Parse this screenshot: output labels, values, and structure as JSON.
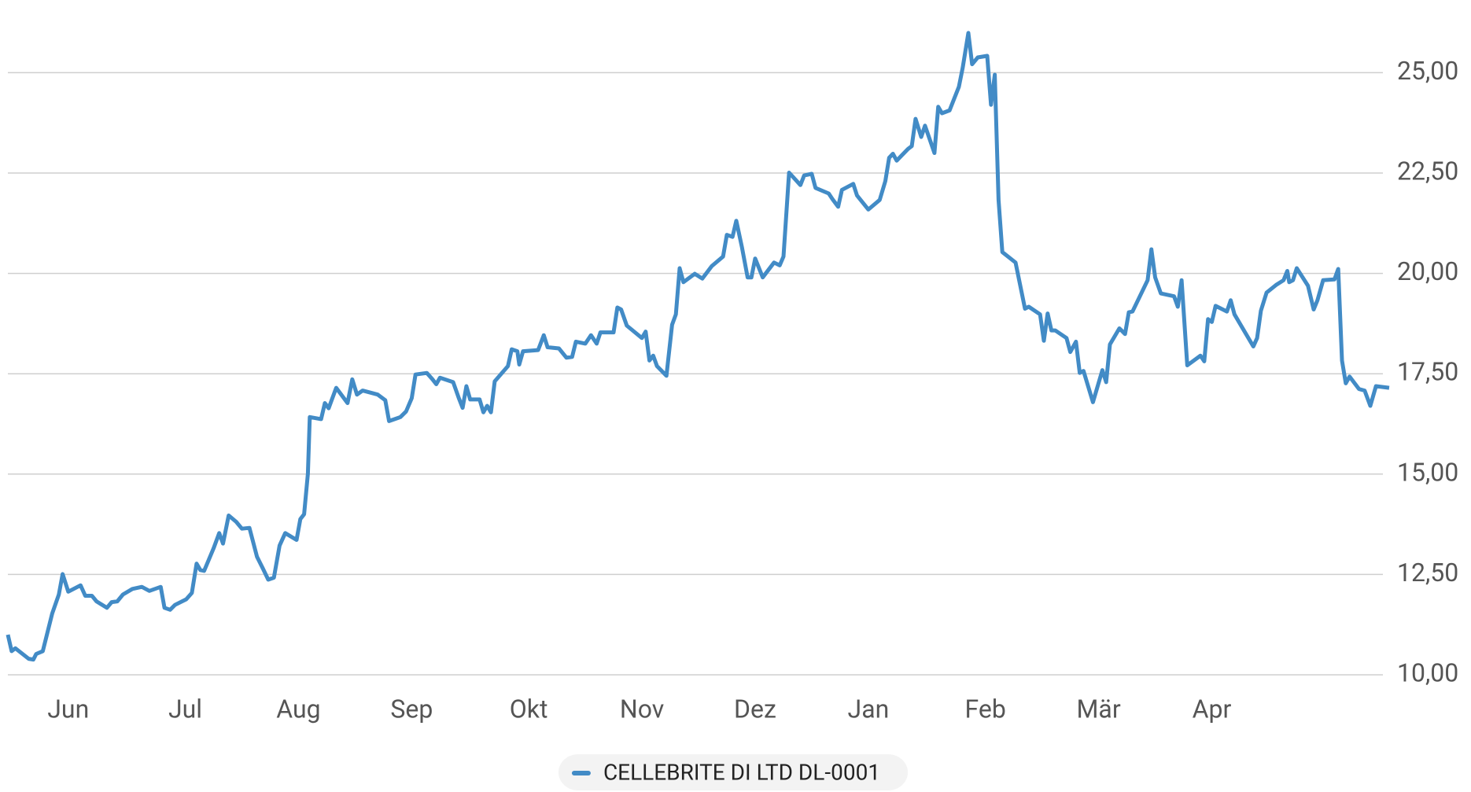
{
  "chart_data": {
    "type": "line",
    "x": [
      0,
      1,
      2,
      5.5,
      6.75,
      7.5,
      9.25,
      11.75,
      13.5,
      14.5,
      16,
      19.25,
      20.5,
      22.25,
      23.5,
      26.25,
      27.5,
      29,
      30.5,
      33,
      35.5,
      37.5,
      40.5,
      41.5,
      43,
      44.25,
      47.25,
      48.75,
      50,
      51,
      52,
      54.5,
      56,
      57,
      58.5,
      60.5,
      62,
      64,
      66,
      67.5,
      69,
      70.5,
      72,
      73.5,
      76.5,
      77.5,
      78.5,
      79.5,
      80,
      83,
      84,
      85,
      87,
      90,
      91.25,
      92.5,
      94,
      98,
      100,
      101,
      104,
      105.5,
      107,
      108,
      111,
      112.5,
      113.5,
      114.5,
      118,
      119.5,
      120.5,
      121.5,
      122.5,
      125,
      126,
      127,
      128,
      129,
      132.5,
      133.5,
      135,
      135.5,
      136.5,
      140.5,
      142,
      143,
      146,
      148,
      149.5,
      150.5,
      153,
      154.5,
      156,
      157,
      160.5,
      161.5,
      162.5,
      164,
      168,
      169,
      170,
      171,
      172,
      174.5,
      176,
      177,
      178,
      179,
      182,
      184,
      186.5,
      189.5,
      190.5,
      192,
      193,
      194.5,
      196,
      197,
      198,
      200,
      203,
      204.5,
      205.5,
      207,
      210,
      211,
      213,
      214,
      217.5,
      218.5,
      220,
      221,
      224,
      225,
      228,
      231,
      232.5,
      233.5,
      234.5,
      235.5,
      238.5,
      239.5,
      240.5,
      242,
      243,
      245.5,
      246.5,
      247.5,
      249.5,
      252,
      253,
      254.5,
      255.5,
      257,
      259.5,
      260.5,
      261.5,
      262.5,
      263.5,
      267,
      269.5,
      270.5,
      273.5,
      274.5,
      275.5,
      276.5,
      277.5,
      280.5,
      281.5,
      283,
      284,
      285,
      287.5,
      290,
      291,
      292,
      294.5,
      296,
      297,
      298,
      302,
      303,
      304,
      305.5,
      309,
      310,
      311,
      312.5,
      316,
      317,
      318,
      319,
      320,
      323,
      324,
      325,
      330,
      331,
      332,
      333.5,
      336,
      338,
      339,
      339.5,
      340.5,
      341.5,
      344.5,
      346,
      347,
      348.5,
      351.5,
      352.5,
      353.5,
      354.5,
      355.5,
      358,
      359.5,
      361,
      362.5,
      366
    ],
    "series": [
      {
        "name": "CELLEBRITE DI LTD DL-0001",
        "color": "#428bc6",
        "values": [
          11.0,
          10.59,
          10.66,
          10.4,
          10.38,
          10.52,
          10.59,
          11.53,
          12.0,
          12.51,
          12.07,
          12.23,
          11.97,
          11.97,
          11.83,
          11.67,
          11.81,
          11.83,
          12.0,
          12.14,
          12.19,
          12.09,
          12.19,
          11.67,
          11.62,
          11.74,
          11.88,
          12.04,
          12.77,
          12.61,
          12.59,
          13.15,
          13.53,
          13.27,
          13.97,
          13.81,
          13.64,
          13.66,
          12.94,
          12.66,
          12.37,
          12.42,
          13.22,
          13.53,
          13.36,
          13.88,
          14.0,
          15.01,
          16.42,
          16.37,
          16.77,
          16.64,
          17.15,
          16.77,
          17.36,
          16.98,
          17.08,
          16.98,
          16.84,
          16.32,
          16.42,
          16.56,
          16.89,
          17.48,
          17.52,
          17.36,
          17.24,
          17.4,
          17.29,
          16.89,
          16.65,
          17.19,
          16.86,
          16.86,
          16.54,
          16.7,
          16.54,
          17.31,
          17.69,
          18.11,
          18.06,
          17.73,
          18.06,
          18.09,
          18.46,
          18.16,
          18.13,
          17.9,
          17.92,
          18.3,
          18.25,
          18.46,
          18.25,
          18.53,
          18.53,
          19.15,
          19.1,
          18.7,
          18.39,
          18.55,
          17.83,
          17.95,
          17.69,
          17.45,
          18.72,
          18.98,
          20.13,
          19.78,
          19.99,
          19.87,
          20.18,
          20.42,
          20.96,
          20.91,
          21.31,
          20.65,
          19.9,
          19.9,
          20.37,
          19.9,
          20.27,
          20.2,
          20.42,
          22.51,
          22.2,
          22.44,
          22.48,
          22.13,
          21.99,
          21.85,
          21.66,
          22.08,
          22.23,
          21.94,
          21.59,
          21.83,
          22.3,
          22.88,
          22.98,
          22.81,
          23.1,
          23.17,
          23.85,
          23.4,
          23.68,
          23.0,
          24.15,
          23.99,
          24.06,
          24.65,
          25.12,
          25.99,
          25.21,
          25.38,
          25.42,
          24.2,
          24.95,
          21.83,
          20.53,
          20.27,
          19.12,
          19.17,
          18.98,
          18.32,
          19.0,
          18.58,
          18.58,
          18.39,
          18.04,
          18.3,
          17.52,
          17.57,
          16.79,
          17.59,
          17.29,
          18.23,
          18.63,
          18.49,
          19.03,
          19.05,
          19.83,
          20.6,
          19.9,
          19.5,
          19.43,
          19.17,
          19.83,
          17.71,
          17.95,
          17.81,
          18.86,
          18.79,
          19.19,
          19.05,
          19.33,
          18.98,
          18.18,
          18.39,
          19.07,
          19.52,
          19.71,
          19.83,
          20.06,
          19.78,
          19.83,
          20.13,
          19.69,
          19.1,
          19.33,
          19.83,
          19.85,
          20.11,
          17.83,
          17.26,
          17.43,
          17.12,
          17.08,
          16.7,
          17.19,
          17.15
        ]
      }
    ],
    "xlim": [
      0,
      366
    ],
    "xticks": [
      {
        "value": 16,
        "label": "Jun"
      },
      {
        "value": 47,
        "label": "Jul"
      },
      {
        "value": 77,
        "label": "Aug"
      },
      {
        "value": 107,
        "label": "Sep"
      },
      {
        "value": 138,
        "label": "Okt"
      },
      {
        "value": 168,
        "label": "Nov"
      },
      {
        "value": 198,
        "label": "Dez"
      },
      {
        "value": 228,
        "label": "Jan"
      },
      {
        "value": 259,
        "label": "Feb"
      },
      {
        "value": 289,
        "label": "Mär"
      },
      {
        "value": 319,
        "label": "Apr"
      }
    ],
    "ylim": [
      10,
      26.5
    ],
    "yticks": [
      {
        "value": 10,
        "label": "10,00"
      },
      {
        "value": 12.5,
        "label": "12,50"
      },
      {
        "value": 15,
        "label": "15,00"
      },
      {
        "value": 17.5,
        "label": "17,50"
      },
      {
        "value": 20,
        "label": "20,00"
      },
      {
        "value": 22.5,
        "label": "22,50"
      },
      {
        "value": 25,
        "label": "25,00"
      }
    ],
    "grid": true
  }
}
